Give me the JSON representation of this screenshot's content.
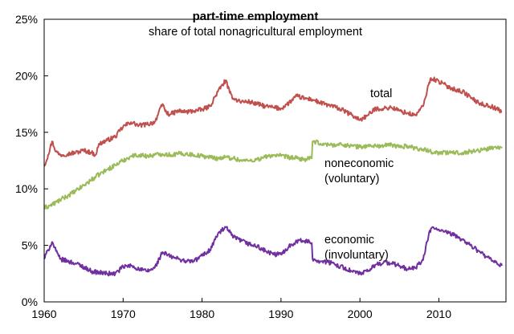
{
  "chart_data": {
    "type": "line",
    "title": "part-time employment",
    "subtitle": "share of total nonagricultural employment",
    "xlabel": "",
    "ylabel": "",
    "x_ticks": [
      "1960",
      "1970",
      "1980",
      "1990",
      "2000",
      "2010"
    ],
    "y_ticks": [
      "0%",
      "5%",
      "10%",
      "15%",
      "20%",
      "25%"
    ],
    "xlim": [
      1960,
      2018.5
    ],
    "ylim": [
      0,
      25
    ],
    "grid": false,
    "legend": "inline labels",
    "series": [
      {
        "name": "total",
        "label_lines": [
          "total"
        ],
        "color": "#c0504d",
        "points": [
          [
            1960.0,
            12.0
          ],
          [
            1960.5,
            13.0
          ],
          [
            1961.0,
            14.2
          ],
          [
            1961.5,
            13.3
          ],
          [
            1962.0,
            13.0
          ],
          [
            1963.0,
            13.1
          ],
          [
            1964.0,
            13.2
          ],
          [
            1965.0,
            13.4
          ],
          [
            1966.0,
            13.2
          ],
          [
            1966.5,
            13.0
          ],
          [
            1967.0,
            14.0
          ],
          [
            1968.0,
            14.3
          ],
          [
            1969.0,
            14.6
          ],
          [
            1970.0,
            15.5
          ],
          [
            1971.0,
            15.9
          ],
          [
            1972.0,
            15.6
          ],
          [
            1973.0,
            15.7
          ],
          [
            1974.0,
            15.9
          ],
          [
            1975.0,
            17.5
          ],
          [
            1975.5,
            16.7
          ],
          [
            1976.0,
            16.6
          ],
          [
            1977.0,
            16.9
          ],
          [
            1978.0,
            16.8
          ],
          [
            1979.0,
            16.9
          ],
          [
            1980.0,
            17.0
          ],
          [
            1981.0,
            17.3
          ],
          [
            1982.0,
            18.6
          ],
          [
            1983.0,
            19.6
          ],
          [
            1983.5,
            18.5
          ],
          [
            1984.0,
            18.0
          ],
          [
            1985.0,
            17.7
          ],
          [
            1986.0,
            17.7
          ],
          [
            1987.0,
            17.5
          ],
          [
            1988.0,
            17.3
          ],
          [
            1989.0,
            17.2
          ],
          [
            1990.0,
            17.1
          ],
          [
            1991.0,
            17.6
          ],
          [
            1992.0,
            18.2
          ],
          [
            1993.0,
            18.0
          ],
          [
            1994.0,
            17.9
          ],
          [
            1995.0,
            17.6
          ],
          [
            1996.0,
            17.4
          ],
          [
            1997.0,
            17.2
          ],
          [
            1998.0,
            16.9
          ],
          [
            1999.0,
            16.5
          ],
          [
            2000.0,
            16.1
          ],
          [
            2001.0,
            16.5
          ],
          [
            2002.0,
            17.1
          ],
          [
            2003.0,
            17.1
          ],
          [
            2004.0,
            17.2
          ],
          [
            2005.0,
            16.9
          ],
          [
            2006.0,
            16.7
          ],
          [
            2007.0,
            16.5
          ],
          [
            2008.0,
            17.3
          ],
          [
            2008.7,
            19.2
          ],
          [
            2009.0,
            19.8
          ],
          [
            2010.0,
            19.5
          ],
          [
            2011.0,
            19.1
          ],
          [
            2012.0,
            18.8
          ],
          [
            2013.0,
            18.6
          ],
          [
            2014.0,
            18.1
          ],
          [
            2015.0,
            17.6
          ],
          [
            2016.0,
            17.4
          ],
          [
            2017.0,
            17.2
          ],
          [
            2018.0,
            16.8
          ]
        ]
      },
      {
        "name": "noneconomic (voluntary)",
        "label_lines": [
          "noneconomic",
          "(voluntary)"
        ],
        "color": "#9bbb59",
        "points": [
          [
            1960.0,
            8.3
          ],
          [
            1961.0,
            8.6
          ],
          [
            1962.0,
            9.0
          ],
          [
            1963.0,
            9.4
          ],
          [
            1964.0,
            9.8
          ],
          [
            1965.0,
            10.3
          ],
          [
            1966.0,
            10.8
          ],
          [
            1967.0,
            11.3
          ],
          [
            1968.0,
            11.7
          ],
          [
            1969.0,
            12.1
          ],
          [
            1970.0,
            12.5
          ],
          [
            1971.0,
            12.9
          ],
          [
            1972.0,
            13.0
          ],
          [
            1973.0,
            12.9
          ],
          [
            1974.0,
            13.0
          ],
          [
            1975.0,
            13.1
          ],
          [
            1976.0,
            13.0
          ],
          [
            1977.0,
            13.1
          ],
          [
            1978.0,
            13.1
          ],
          [
            1979.0,
            13.0
          ],
          [
            1980.0,
            12.9
          ],
          [
            1981.0,
            12.8
          ],
          [
            1982.0,
            12.7
          ],
          [
            1983.0,
            12.8
          ],
          [
            1984.0,
            12.7
          ],
          [
            1985.0,
            12.5
          ],
          [
            1986.0,
            12.5
          ],
          [
            1987.0,
            12.6
          ],
          [
            1988.0,
            12.8
          ],
          [
            1989.0,
            13.0
          ],
          [
            1990.0,
            12.9
          ],
          [
            1991.0,
            12.8
          ],
          [
            1992.0,
            12.7
          ],
          [
            1993.0,
            12.6
          ],
          [
            1993.9,
            12.7
          ],
          [
            1994.0,
            14.2
          ],
          [
            1995.0,
            14.0
          ],
          [
            1996.0,
            13.9
          ],
          [
            1997.0,
            13.9
          ],
          [
            1998.0,
            13.9
          ],
          [
            1999.0,
            13.8
          ],
          [
            2000.0,
            13.7
          ],
          [
            2001.0,
            13.8
          ],
          [
            2002.0,
            13.8
          ],
          [
            2003.0,
            13.8
          ],
          [
            2004.0,
            13.9
          ],
          [
            2005.0,
            13.7
          ],
          [
            2006.0,
            13.8
          ],
          [
            2007.0,
            13.6
          ],
          [
            2008.0,
            13.5
          ],
          [
            2009.0,
            13.3
          ],
          [
            2010.0,
            13.2
          ],
          [
            2011.0,
            13.2
          ],
          [
            2012.0,
            13.2
          ],
          [
            2013.0,
            13.2
          ],
          [
            2014.0,
            13.3
          ],
          [
            2015.0,
            13.4
          ],
          [
            2016.0,
            13.5
          ],
          [
            2017.0,
            13.7
          ],
          [
            2018.0,
            13.6
          ]
        ]
      },
      {
        "name": "economic (involuntary)",
        "label_lines": [
          "economic",
          "(involuntary)"
        ],
        "color": "#7030a0",
        "points": [
          [
            1960.0,
            3.8
          ],
          [
            1960.5,
            4.6
          ],
          [
            1961.0,
            5.3
          ],
          [
            1961.5,
            4.5
          ],
          [
            1962.0,
            3.8
          ],
          [
            1963.0,
            3.6
          ],
          [
            1964.0,
            3.4
          ],
          [
            1965.0,
            3.1
          ],
          [
            1966.0,
            2.7
          ],
          [
            1967.0,
            2.6
          ],
          [
            1968.0,
            2.5
          ],
          [
            1969.0,
            2.5
          ],
          [
            1970.0,
            3.1
          ],
          [
            1971.0,
            3.2
          ],
          [
            1972.0,
            2.9
          ],
          [
            1973.0,
            2.7
          ],
          [
            1974.0,
            3.0
          ],
          [
            1975.0,
            4.4
          ],
          [
            1976.0,
            4.0
          ],
          [
            1977.0,
            3.8
          ],
          [
            1978.0,
            3.6
          ],
          [
            1979.0,
            3.6
          ],
          [
            1980.0,
            4.1
          ],
          [
            1981.0,
            4.6
          ],
          [
            1982.0,
            6.0
          ],
          [
            1983.0,
            6.6
          ],
          [
            1984.0,
            5.7
          ],
          [
            1985.0,
            5.4
          ],
          [
            1986.0,
            5.1
          ],
          [
            1987.0,
            4.9
          ],
          [
            1988.0,
            4.5
          ],
          [
            1989.0,
            4.2
          ],
          [
            1990.0,
            4.2
          ],
          [
            1991.0,
            4.9
          ],
          [
            1992.0,
            5.4
          ],
          [
            1993.0,
            5.4
          ],
          [
            1993.9,
            5.2
          ],
          [
            1994.0,
            3.8
          ],
          [
            1995.0,
            3.6
          ],
          [
            1996.0,
            3.5
          ],
          [
            1997.0,
            3.3
          ],
          [
            1998.0,
            3.0
          ],
          [
            1999.0,
            2.7
          ],
          [
            2000.0,
            2.5
          ],
          [
            2001.0,
            2.7
          ],
          [
            2002.0,
            3.3
          ],
          [
            2003.0,
            3.5
          ],
          [
            2004.0,
            3.4
          ],
          [
            2005.0,
            3.2
          ],
          [
            2006.0,
            2.9
          ],
          [
            2007.0,
            3.0
          ],
          [
            2008.0,
            3.7
          ],
          [
            2008.7,
            5.9
          ],
          [
            2009.0,
            6.5
          ],
          [
            2010.0,
            6.4
          ],
          [
            2011.0,
            6.1
          ],
          [
            2012.0,
            5.9
          ],
          [
            2013.0,
            5.5
          ],
          [
            2014.0,
            5.0
          ],
          [
            2015.0,
            4.5
          ],
          [
            2016.0,
            4.0
          ],
          [
            2017.0,
            3.5
          ],
          [
            2018.0,
            3.2
          ]
        ]
      }
    ]
  }
}
